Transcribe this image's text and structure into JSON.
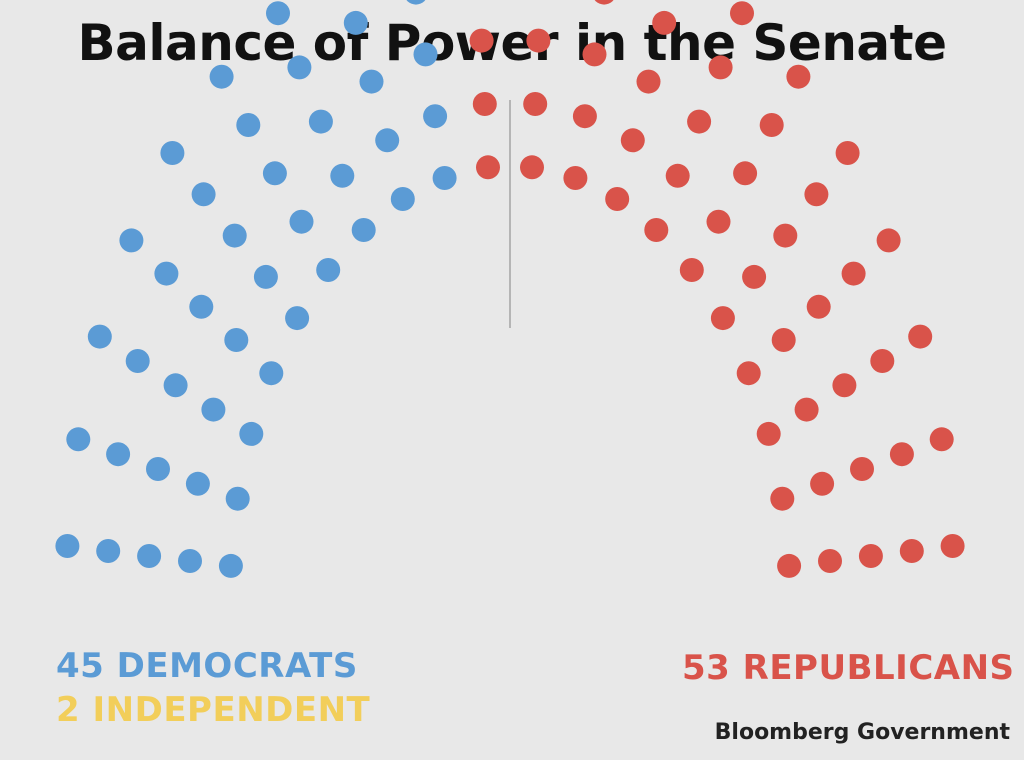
{
  "chart_data": {
    "type": "parliament",
    "title": "Balance of Power in the Senate",
    "total_seats": 100,
    "series": [
      {
        "name": "DEMOCRATS",
        "value": 45,
        "color": "#5b9bd5"
      },
      {
        "name": "INDEPENDENT",
        "value": 2,
        "color": "#f2ce5a"
      },
      {
        "name": "REPUBLICANS",
        "value": 53,
        "color": "#d9534a"
      }
    ],
    "labels": {
      "democrats": "45 DEMOCRATS",
      "independent": "2 INDEPENDENT",
      "republicans": "53 REPUBLICANS"
    },
    "source": "Bloomberg Government",
    "divider": true
  }
}
